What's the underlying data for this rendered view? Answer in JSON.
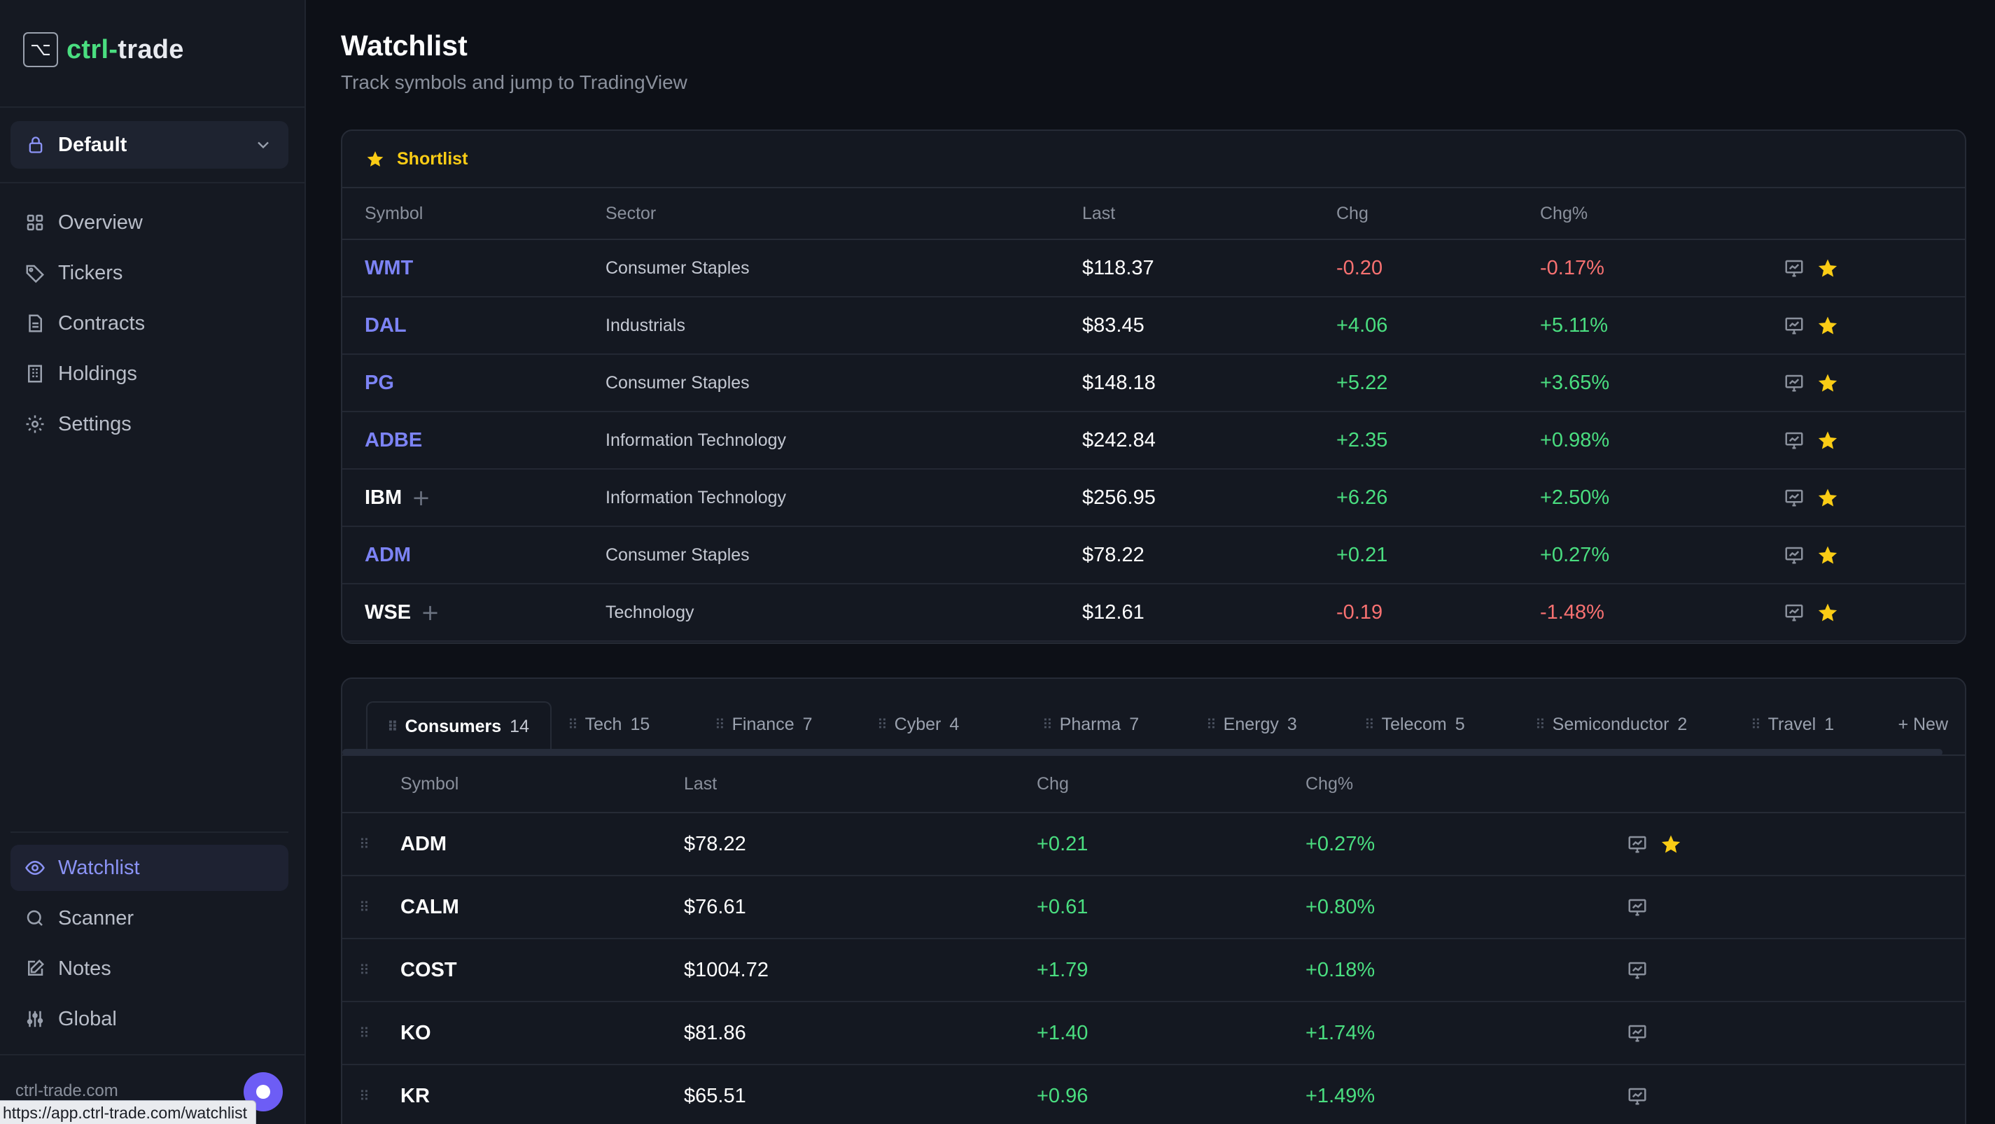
{
  "app": {
    "logo_glyph": "⌥",
    "logo_prefix": "ctrl-",
    "logo_suffix": "trade"
  },
  "account": {
    "label": "Default"
  },
  "nav_primary": [
    {
      "label": "Overview",
      "icon": "grid-icon"
    },
    {
      "label": "Tickers",
      "icon": "tag-icon"
    },
    {
      "label": "Contracts",
      "icon": "document-icon"
    },
    {
      "label": "Holdings",
      "icon": "building-icon"
    },
    {
      "label": "Settings",
      "icon": "gear-icon"
    }
  ],
  "nav_secondary": [
    {
      "label": "Watchlist",
      "icon": "eye-icon",
      "active": true
    },
    {
      "label": "Scanner",
      "icon": "search-icon"
    },
    {
      "label": "Notes",
      "icon": "edit-icon"
    },
    {
      "label": "Global",
      "icon": "sliders-icon"
    }
  ],
  "footer": {
    "domain": "ctrl-trade.com",
    "status_url": "https://app.ctrl-trade.com/watchlist"
  },
  "page": {
    "title": "Watchlist",
    "subtitle": "Track symbols and jump to TradingView"
  },
  "shortlist": {
    "title": "Shortlist",
    "columns": [
      "Symbol",
      "Sector",
      "Last",
      "Chg",
      "Chg%"
    ],
    "rows": [
      {
        "symbol": "WMT",
        "linked": true,
        "sector": "Consumer Staples",
        "last": "$118.37",
        "chg": "-0.20",
        "chg_pct": "-0.17%",
        "dir": "neg"
      },
      {
        "symbol": "DAL",
        "linked": true,
        "sector": "Industrials",
        "last": "$83.45",
        "chg": "+4.06",
        "chg_pct": "+5.11%",
        "dir": "pos"
      },
      {
        "symbol": "PG",
        "linked": true,
        "sector": "Consumer Staples",
        "last": "$148.18",
        "chg": "+5.22",
        "chg_pct": "+3.65%",
        "dir": "pos"
      },
      {
        "symbol": "ADBE",
        "linked": true,
        "sector": "Information Technology",
        "last": "$242.84",
        "chg": "+2.35",
        "chg_pct": "+0.98%",
        "dir": "pos"
      },
      {
        "symbol": "IBM",
        "linked": false,
        "sector": "Information Technology",
        "last": "$256.95",
        "chg": "+6.26",
        "chg_pct": "+2.50%",
        "dir": "pos"
      },
      {
        "symbol": "ADM",
        "linked": true,
        "sector": "Consumer Staples",
        "last": "$78.22",
        "chg": "+0.21",
        "chg_pct": "+0.27%",
        "dir": "pos"
      },
      {
        "symbol": "WSE",
        "linked": false,
        "sector": "Technology",
        "last": "$12.61",
        "chg": "-0.19",
        "chg_pct": "-1.48%",
        "dir": "neg"
      }
    ]
  },
  "lists": {
    "tabs": [
      {
        "label": "Consumers",
        "count": "14",
        "active": true
      },
      {
        "label": "Tech",
        "count": "15"
      },
      {
        "label": "Finance",
        "count": "7"
      },
      {
        "label": "Cyber",
        "count": "4"
      },
      {
        "label": "Pharma",
        "count": "7"
      },
      {
        "label": "Energy",
        "count": "3"
      },
      {
        "label": "Telecom",
        "count": "5"
      },
      {
        "label": "Semiconductor",
        "count": "2"
      },
      {
        "label": "Travel",
        "count": "1"
      }
    ],
    "new_label": "+ New",
    "columns": [
      "Symbol",
      "Last",
      "Chg",
      "Chg%"
    ],
    "rows": [
      {
        "symbol": "ADM",
        "last": "$78.22",
        "chg": "+0.21",
        "chg_pct": "+0.27%",
        "starred": true
      },
      {
        "symbol": "CALM",
        "last": "$76.61",
        "chg": "+0.61",
        "chg_pct": "+0.80%",
        "starred": false
      },
      {
        "symbol": "COST",
        "last": "$1004.72",
        "chg": "+1.79",
        "chg_pct": "+0.18%",
        "starred": false
      },
      {
        "symbol": "KO",
        "last": "$81.86",
        "chg": "+1.40",
        "chg_pct": "+1.74%",
        "starred": false
      },
      {
        "symbol": "KR",
        "last": "$65.51",
        "chg": "+0.96",
        "chg_pct": "+1.49%",
        "starred": false
      }
    ]
  },
  "colors": {
    "accent": "#7c83f5",
    "positive": "#4ade80",
    "negative": "#f87171",
    "star": "#facc15",
    "brand_green": "#4ade80"
  }
}
